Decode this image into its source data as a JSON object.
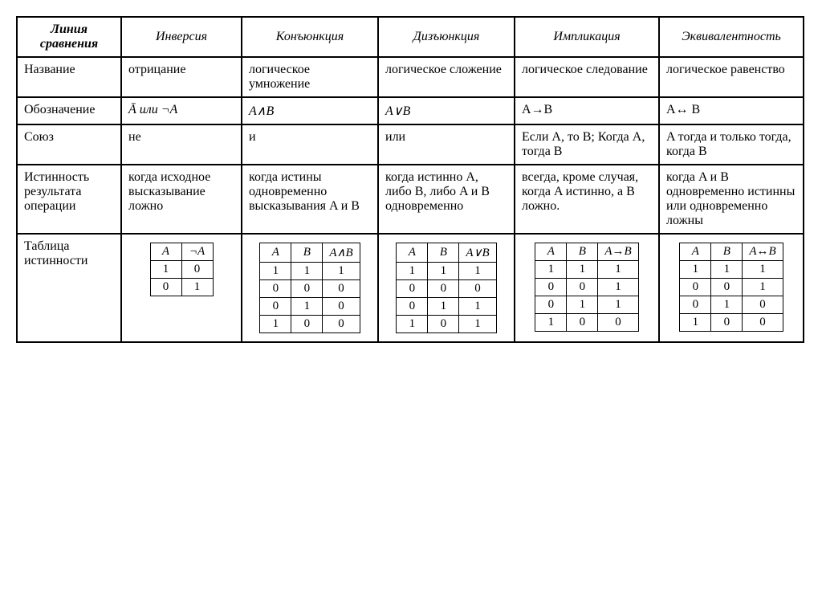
{
  "headers": {
    "row_label": "Линия сравнения",
    "inversion": "Инверсия",
    "conjunction": "Конъюнкция",
    "disjunction": "Дизъюнкция",
    "implication": "Импликация",
    "equivalence": "Эквивалентность"
  },
  "rows": {
    "name": {
      "label": "Название",
      "inversion": "отрицание",
      "conjunction": "логическое умножение",
      "disjunction": "логическое сложение",
      "implication": "логическое следование",
      "equivalence": "логическое равенство"
    },
    "notation": {
      "label": "Обозначение",
      "inversion": "Ā или ¬A",
      "conjunction": "A∧B",
      "disjunction": "A∨B",
      "implication": "A→B",
      "equivalence": "A↔ B"
    },
    "union": {
      "label": "Союз",
      "inversion": "не",
      "conjunction": "и",
      "disjunction": "или",
      "implication": "Если A, то B; Когда A, тогда B",
      "equivalence": "A тогда и только тогда, когда B"
    },
    "truth_cond": {
      "label": "Истинность результата операции",
      "inversion": "когда исходное высказывание ложно",
      "conjunction": "когда истины одновременно высказывания A и B",
      "disjunction": "когда истинно A, либо B, либо A и B одновременно",
      "implication": "всегда, кроме случая, когда A истинно, а B ложно.",
      "equivalence": "когда A и B одновременно истинны или одновременно ложны"
    },
    "truth_table": {
      "label": "Таблица истинности"
    }
  },
  "truth_tables": {
    "inversion": {
      "cols": [
        "A",
        "¬A"
      ],
      "rows": [
        [
          "1",
          "0"
        ],
        [
          "0",
          "1"
        ]
      ]
    },
    "conjunction": {
      "cols": [
        "A",
        "B",
        "A∧B"
      ],
      "rows": [
        [
          "1",
          "1",
          "1"
        ],
        [
          "0",
          "0",
          "0"
        ],
        [
          "0",
          "1",
          "0"
        ],
        [
          "1",
          "0",
          "0"
        ]
      ]
    },
    "disjunction": {
      "cols": [
        "A",
        "B",
        "A∨B"
      ],
      "rows": [
        [
          "1",
          "1",
          "1"
        ],
        [
          "0",
          "0",
          "0"
        ],
        [
          "0",
          "1",
          "1"
        ],
        [
          "1",
          "0",
          "1"
        ]
      ]
    },
    "implication": {
      "cols": [
        "A",
        "B",
        "A→B"
      ],
      "rows": [
        [
          "1",
          "1",
          "1"
        ],
        [
          "0",
          "0",
          "1"
        ],
        [
          "0",
          "1",
          "1"
        ],
        [
          "1",
          "0",
          "0"
        ]
      ]
    },
    "equivalence": {
      "cols": [
        "A",
        "B",
        "A↔B"
      ],
      "rows": [
        [
          "1",
          "1",
          "1"
        ],
        [
          "0",
          "0",
          "1"
        ],
        [
          "0",
          "1",
          "0"
        ],
        [
          "1",
          "0",
          "0"
        ]
      ]
    }
  },
  "style": {
    "border_color": "#000000",
    "background": "#ffffff",
    "font_family": "Times New Roman",
    "font_size_pt": 12,
    "header_italic": true
  }
}
